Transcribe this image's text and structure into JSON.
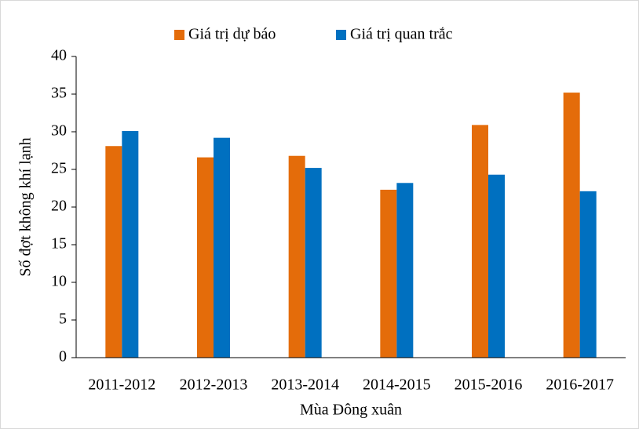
{
  "chart_data": {
    "type": "bar",
    "x_label": "Mùa Đông xuân",
    "y_label": "Số đợt không khí lạnh",
    "categories": [
      "2011-2012",
      "2012-2013",
      "2013-2014",
      "2014-2015",
      "2015-2016",
      "2016-2017"
    ],
    "series": [
      {
        "name": "Giá trị dự báo",
        "color": "#e46c0a",
        "values": [
          28.1,
          26.6,
          26.8,
          22.3,
          30.9,
          35.2
        ]
      },
      {
        "name": "Giá trị quan trắc",
        "color": "#0070c0",
        "values": [
          30.1,
          29.2,
          25.2,
          23.2,
          24.3,
          22.1
        ]
      }
    ],
    "ylim": [
      0,
      40
    ],
    "yticks": [
      0,
      5,
      10,
      15,
      20,
      25,
      30,
      35,
      40
    ],
    "grid": false,
    "legend": "top"
  }
}
